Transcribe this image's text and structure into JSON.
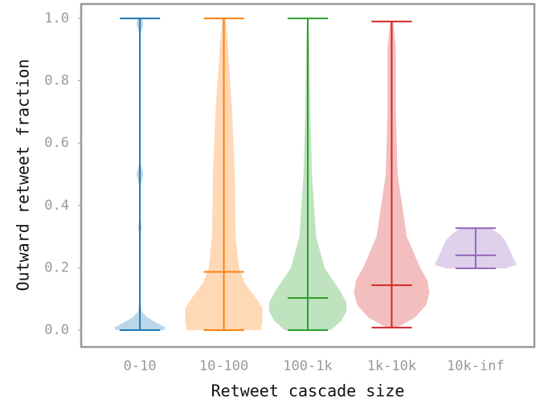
{
  "chart_data": {
    "type": "violin",
    "xlabel": "Retweet cascade size",
    "ylabel": "Outward retweet fraction",
    "categories": [
      "0-10",
      "10-100",
      "100-1k",
      "1k-10k",
      "10k-inf"
    ],
    "ylim": [
      -0.054,
      1.046
    ],
    "yticks": [
      {
        "value": 0,
        "label": "0.0"
      },
      {
        "value": 0.2,
        "label": "0.2"
      },
      {
        "value": 0.4,
        "label": "0.4"
      },
      {
        "value": 0.6,
        "label": "0.6"
      },
      {
        "value": 0.8,
        "label": "0.8"
      },
      {
        "value": 1,
        "label": "1.0"
      }
    ],
    "violins": [
      {
        "color": "#1f77b4",
        "min": 0,
        "median": 0,
        "max": 1.0,
        "density_y": [
          0,
          0.01,
          0.02,
          0.04,
          0.06,
          0.1,
          0.3,
          0.33,
          0.36,
          0.46,
          0.5,
          0.54,
          0.95,
          0.98,
          1.0
        ],
        "density": [
          0.58,
          0.6,
          0.45,
          0.18,
          0.04,
          0.01,
          0.01,
          0.04,
          0.01,
          0.01,
          0.08,
          0.01,
          0.01,
          0.08,
          0.06
        ]
      },
      {
        "color": "#ff7f0e",
        "min": 0,
        "median": 0.187,
        "max": 1.0,
        "density_y": [
          0,
          0.03,
          0.07,
          0.1,
          0.15,
          0.2,
          0.3,
          0.5,
          0.7,
          0.9,
          1.0
        ],
        "density": [
          0.88,
          0.92,
          0.92,
          0.78,
          0.5,
          0.36,
          0.28,
          0.26,
          0.2,
          0.1,
          0.04
        ]
      },
      {
        "color": "#2ca02c",
        "min": 0,
        "median": 0.103,
        "max": 1.0,
        "density_y": [
          0,
          0.03,
          0.06,
          0.09,
          0.13,
          0.2,
          0.3,
          0.5,
          0.7,
          0.9,
          1.0
        ],
        "density": [
          0.55,
          0.8,
          0.92,
          0.92,
          0.75,
          0.4,
          0.2,
          0.1,
          0.06,
          0.04,
          0.02
        ]
      },
      {
        "color": "#d62728",
        "min": 0.008,
        "median": 0.144,
        "max": 0.99,
        "density_y": [
          0.008,
          0.04,
          0.08,
          0.12,
          0.16,
          0.2,
          0.3,
          0.5,
          0.7,
          0.9,
          0.99
        ],
        "density": [
          0.12,
          0.55,
          0.82,
          0.9,
          0.85,
          0.68,
          0.36,
          0.14,
          0.1,
          0.1,
          0.04
        ]
      },
      {
        "color": "#9467bd",
        "min": 0.198,
        "median": 0.24,
        "max": 0.327,
        "density_y": [
          0.198,
          0.21,
          0.23,
          0.26,
          0.29,
          0.31,
          0.327
        ],
        "density": [
          0.7,
          0.98,
          0.9,
          0.8,
          0.7,
          0.55,
          0.35
        ]
      }
    ]
  }
}
